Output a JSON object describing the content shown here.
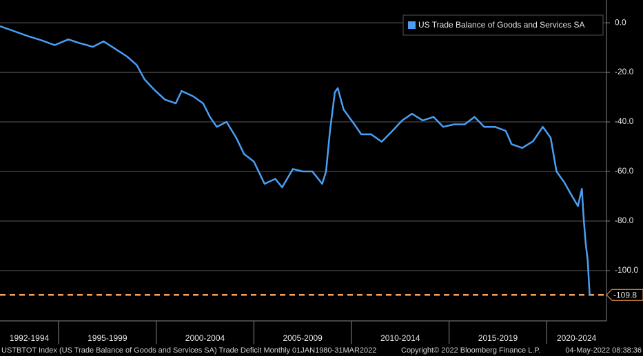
{
  "chart_data": {
    "type": "line",
    "series": [
      {
        "name": "US Trade Balance of Goods and Services SA",
        "color": "#4a9ff5",
        "x": [
          1992.0,
          1992.7,
          1993.4,
          1994.1,
          1994.8,
          1995.5,
          1996.0,
          1996.75,
          1997.3,
          1997.8,
          1998.5,
          1999.0,
          1999.4,
          1999.9,
          2000.45,
          2001.0,
          2001.3,
          2001.9,
          2002.4,
          2002.75,
          2003.1,
          2003.6,
          2004.1,
          2004.5,
          2005.0,
          2005.55,
          2006.1,
          2006.45,
          2007.0,
          2007.5,
          2008.0,
          2008.5,
          2008.7,
          2008.9,
          2009.15,
          2009.3,
          2009.6,
          2010.15,
          2010.5,
          2011.0,
          2011.55,
          2012.1,
          2012.6,
          2013.1,
          2013.65,
          2014.2,
          2014.7,
          2015.25,
          2015.8,
          2016.3,
          2016.8,
          2017.35,
          2017.9,
          2018.2,
          2018.75,
          2019.3,
          2019.8,
          2020.2,
          2020.5,
          2020.9,
          2021.2,
          2021.6,
          2021.8,
          2021.9,
          2022.0,
          2022.1,
          2022.2
        ],
        "values": [
          -1.4,
          -3.3,
          -5.3,
          -7,
          -9,
          -6.7,
          -8,
          -9.7,
          -7.5,
          -10,
          -13.6,
          -17,
          -22.8,
          -27,
          -31,
          -32.5,
          -27.5,
          -29.7,
          -32.5,
          -38,
          -42,
          -40,
          -46.4,
          -53,
          -56,
          -65,
          -63,
          -66.4,
          -59,
          -60,
          -60,
          -65,
          -60,
          -43.6,
          -28,
          -26.4,
          -35,
          -41,
          -45,
          -45,
          -48,
          -43.6,
          -39.4,
          -36.7,
          -39.4,
          -38,
          -42,
          -41,
          -41,
          -38,
          -42,
          -42,
          -43.6,
          -49,
          -50.5,
          -47.8,
          -42,
          -46.4,
          -60,
          -64.4,
          -68.6,
          -74,
          -67,
          -79.7,
          -89.4,
          -96,
          -109.8
        ]
      }
    ],
    "xlim": [
      1992,
      2023.06
    ],
    "xticks": [
      1995,
      2000,
      2005,
      2010,
      2015,
      2020
    ],
    "period_labels": [
      "1992-1994",
      "1995-1999",
      "2000-2004",
      "2005-2009",
      "2010-2014",
      "2015-2019",
      "2020-2024"
    ],
    "ylim": [
      -120.3,
      9.2
    ],
    "yticks": [
      {
        "value": 0,
        "label": "0.0"
      },
      {
        "value": -20,
        "label": "-20.0"
      },
      {
        "value": -40,
        "label": "-40.0"
      },
      {
        "value": -60,
        "label": "-60.0"
      },
      {
        "value": -80,
        "label": "-80.0"
      },
      {
        "value": -100,
        "label": "-100.0"
      }
    ],
    "grid": true,
    "reference_line": {
      "value": -109.8,
      "label": "-109.8",
      "color": "#f5a05a"
    },
    "footer": [
      "USTBTOT Index (US Trade Balance of Goods and Services SA) Trade Deficit  Monthly 01JAN1980-31MAR2022",
      "Copyright© 2022 Bloomberg Finance L.P.",
      "04-May-2022 08:38:36"
    ]
  }
}
